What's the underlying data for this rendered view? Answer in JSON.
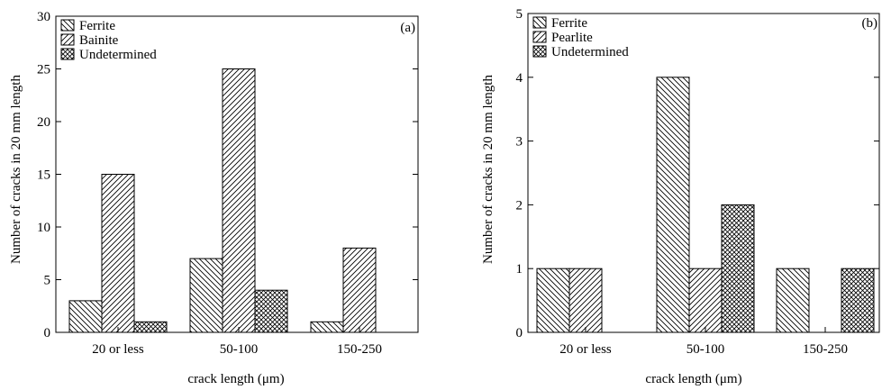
{
  "chart_data": [
    {
      "type": "bar",
      "panel": "(a)",
      "categories": [
        "20 or less",
        "50-100",
        "150-250"
      ],
      "series": [
        {
          "name": "Ferrite",
          "values": [
            3,
            7,
            1
          ],
          "pattern": "hatch-ferrite"
        },
        {
          "name": "Bainite",
          "values": [
            15,
            25,
            8
          ],
          "pattern": "hatch-second"
        },
        {
          "name": "Undetermined",
          "values": [
            1,
            4,
            0
          ],
          "pattern": "crosshatch"
        }
      ],
      "xlabel": "crack length (μm)",
      "ylabel": "Number of cracks in 20 mm length",
      "ylim": [
        0,
        30
      ],
      "yticks": [
        "0",
        "5",
        "10",
        "15",
        "20",
        "25",
        "30"
      ],
      "legend_position": "top-left",
      "grid": false
    },
    {
      "type": "bar",
      "panel": "(b)",
      "categories": [
        "20 or less",
        "50-100",
        "150-250"
      ],
      "series": [
        {
          "name": "Ferrite",
          "values": [
            1,
            4,
            1
          ],
          "pattern": "hatch-ferrite"
        },
        {
          "name": "Pearlite",
          "values": [
            1,
            1,
            0
          ],
          "pattern": "hatch-second"
        },
        {
          "name": "Undetermined",
          "values": [
            0,
            2,
            1
          ],
          "pattern": "crosshatch"
        }
      ],
      "xlabel": "crack length (μm)",
      "ylabel": "Number of cracks in 20 mm length",
      "ylim": [
        0,
        5
      ],
      "yticks": [
        "0",
        "1",
        "2",
        "3",
        "4",
        "5"
      ],
      "legend_position": "top-left",
      "grid": false
    }
  ]
}
